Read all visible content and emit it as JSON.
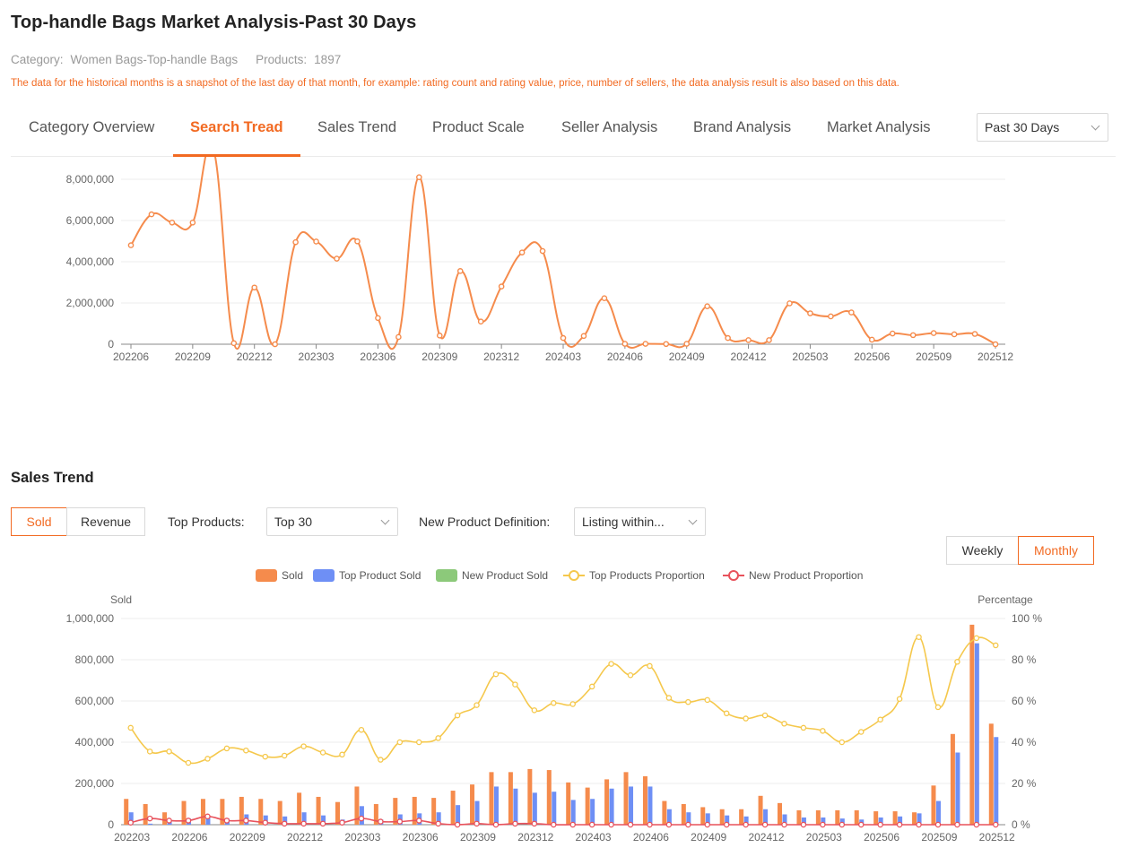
{
  "header": {
    "title": "Top-handle Bags Market Analysis-Past 30 Days",
    "category_label": "Category:",
    "category_value": "Women Bags-Top-handle Bags",
    "products_label": "Products:",
    "products_value": "1897",
    "notice": "The data for the historical months is a snapshot of the last day of that month, for example: rating count and rating value, price, number of sellers, the data analysis result is also based on this data."
  },
  "tabs": [
    "Category Overview",
    "Search Tread",
    "Sales Trend",
    "Product Scale",
    "Seller Analysis",
    "Brand Analysis",
    "Market Analysis"
  ],
  "active_tab": "Search Tread",
  "period_select": {
    "value": "Past 30 Days"
  },
  "sales_section": {
    "title": "Sales Trend",
    "metric_toggle": {
      "sold": "Sold",
      "revenue": "Revenue",
      "active": "Sold"
    },
    "top_products_label": "Top Products:",
    "top_products_value": "Top 30",
    "new_product_label": "New Product Definition:",
    "new_product_value": "Listing within...",
    "period_toggle": {
      "weekly": "Weekly",
      "monthly": "Monthly",
      "active": "Monthly"
    }
  },
  "colors": {
    "accent": "#f26a22",
    "line_search": "#f58b4c",
    "sold": "#f58b4c",
    "top_sold": "#6e8ff5",
    "new_sold": "#8cc97a",
    "top_proportion": "#f5c84c",
    "new_proportion": "#e8525c"
  },
  "chart_data": [
    {
      "type": "line",
      "title": "",
      "x": [
        "202206",
        "202207",
        "202208",
        "202209",
        "202210",
        "202211",
        "202212",
        "202301",
        "202302",
        "202303",
        "202304",
        "202305",
        "202306",
        "202307",
        "202308",
        "202309",
        "202310",
        "202311",
        "202312",
        "202401",
        "202402",
        "202403",
        "202404",
        "202405",
        "202406",
        "202407",
        "202408",
        "202409",
        "202410",
        "202411",
        "202412",
        "202501",
        "202502",
        "202503",
        "202504",
        "202505",
        "202506",
        "202507",
        "202508",
        "202509",
        "202510",
        "202511",
        "202512"
      ],
      "x_tick_labels": [
        "202206",
        "202209",
        "202212",
        "202303",
        "202306",
        "202309",
        "202312",
        "202403",
        "202406",
        "202409",
        "202412",
        "202503",
        "202506",
        "202509",
        "202512"
      ],
      "series": [
        {
          "values": [
            4800000,
            6300000,
            5900000,
            5900000,
            9500000,
            50000,
            2750000,
            0,
            4950000,
            4980000,
            4150000,
            4990000,
            1270000,
            350000,
            8100000,
            420000,
            3550000,
            1100000,
            2800000,
            4450000,
            4520000,
            300000,
            400000,
            2230000,
            20000,
            20000,
            10000,
            20000,
            1840000,
            300000,
            200000,
            200000,
            1980000,
            1500000,
            1350000,
            1540000,
            220000,
            520000,
            440000,
            540000,
            480000,
            500000,
            0
          ]
        }
      ],
      "ylim": [
        0,
        8000000
      ],
      "y_ticks": [
        0,
        2000000,
        4000000,
        6000000,
        8000000
      ],
      "y_tick_labels": [
        "0",
        "2,000,000",
        "4,000,000",
        "6,000,000",
        "8,000,000"
      ],
      "grid": true
    },
    {
      "type": "bar",
      "x": [
        "202203",
        "202204",
        "202205",
        "202206",
        "202207",
        "202208",
        "202209",
        "202210",
        "202211",
        "202212",
        "202301",
        "202302",
        "202303",
        "202304",
        "202305",
        "202306",
        "202307",
        "202308",
        "202309",
        "202310",
        "202311",
        "202312",
        "202401",
        "202402",
        "202403",
        "202404",
        "202405",
        "202406",
        "202407",
        "202408",
        "202409",
        "202410",
        "202411",
        "202412",
        "202501",
        "202502",
        "202503",
        "202504",
        "202505",
        "202506",
        "202507",
        "202508",
        "202509",
        "202510",
        "202511",
        "202512"
      ],
      "x_tick_labels": [
        "202203",
        "202206",
        "202209",
        "202212",
        "202303",
        "202306",
        "202309",
        "202312",
        "202403",
        "202406",
        "202409",
        "202412",
        "202503",
        "202506",
        "202509",
        "202512"
      ],
      "legend": [
        "Sold",
        "Top Product Sold",
        "New Product Sold",
        "Top Products Proportion",
        "New Product Proportion"
      ],
      "left_axis_title": "Sold",
      "right_axis_title": "Percentage",
      "ylim_left": [
        0,
        1000000
      ],
      "left_ticks": [
        0,
        200000,
        400000,
        600000,
        800000,
        1000000
      ],
      "left_tick_labels": [
        "0",
        "200,000",
        "400,000",
        "600,000",
        "800,000",
        "1,000,000"
      ],
      "ylim_right": [
        0,
        100
      ],
      "right_tick_labels": [
        "0 %",
        "20 %",
        "40 %",
        "60 %",
        "80 %",
        "100 %"
      ],
      "series": [
        {
          "name": "Sold",
          "kind": "bar",
          "axis": "left",
          "values": [
            125000,
            100000,
            60000,
            115000,
            125000,
            125000,
            135000,
            125000,
            115000,
            155000,
            135000,
            110000,
            185000,
            100000,
            130000,
            135000,
            130000,
            165000,
            195000,
            255000,
            255000,
            270000,
            265000,
            205000,
            180000,
            220000,
            255000,
            235000,
            115000,
            100000,
            85000,
            75000,
            75000,
            140000,
            105000,
            70000,
            70000,
            70000,
            70000,
            65000,
            65000,
            60000,
            190000,
            440000,
            970000,
            490000
          ]
        },
        {
          "name": "Top Product Sold",
          "kind": "bar",
          "axis": "left",
          "values": [
            60000,
            5000,
            15000,
            30000,
            40000,
            30000,
            50000,
            45000,
            40000,
            60000,
            45000,
            25000,
            90000,
            25000,
            50000,
            55000,
            60000,
            95000,
            115000,
            185000,
            175000,
            155000,
            160000,
            120000,
            125000,
            175000,
            185000,
            185000,
            75000,
            60000,
            55000,
            45000,
            40000,
            75000,
            50000,
            35000,
            35000,
            30000,
            25000,
            35000,
            40000,
            55000,
            115000,
            350000,
            880000,
            425000
          ]
        },
        {
          "name": "New Product Sold",
          "kind": "bar",
          "axis": "left",
          "values": [
            0,
            0,
            0,
            0,
            0,
            0,
            0,
            0,
            0,
            0,
            0,
            0,
            0,
            0,
            0,
            0,
            0,
            0,
            0,
            0,
            0,
            0,
            0,
            0,
            0,
            0,
            0,
            0,
            0,
            0,
            0,
            0,
            0,
            0,
            0,
            0,
            0,
            0,
            0,
            0,
            0,
            0,
            0,
            0,
            0,
            0
          ]
        },
        {
          "name": "Top Products Proportion",
          "kind": "line",
          "axis": "right",
          "values": [
            47,
            35.5,
            35.5,
            30,
            32,
            37,
            36,
            33,
            33.5,
            38,
            35,
            34,
            46,
            31.5,
            40,
            40,
            42,
            53,
            58,
            73,
            68,
            55.5,
            59,
            58.5,
            67,
            78,
            72.5,
            77,
            61.5,
            59.5,
            60.5,
            54,
            51.5,
            53,
            49,
            47,
            45.5,
            40,
            45,
            51,
            61,
            91,
            57,
            79,
            90.5,
            87
          ]
        },
        {
          "name": "New Product Proportion",
          "kind": "line",
          "axis": "right",
          "values": [
            1,
            3,
            2,
            2,
            4,
            2,
            2,
            1,
            0.5,
            0.5,
            0.5,
            1,
            3,
            1.5,
            1.5,
            2,
            0.5,
            0,
            0.5,
            0,
            0.5,
            0.5,
            0,
            0,
            0,
            0,
            0,
            0,
            0,
            0,
            0,
            0,
            0,
            0,
            0,
            0,
            0,
            0,
            0,
            0,
            0,
            0,
            0,
            0,
            0,
            0
          ]
        }
      ],
      "grid": true,
      "legend_position": "top-center"
    }
  ]
}
